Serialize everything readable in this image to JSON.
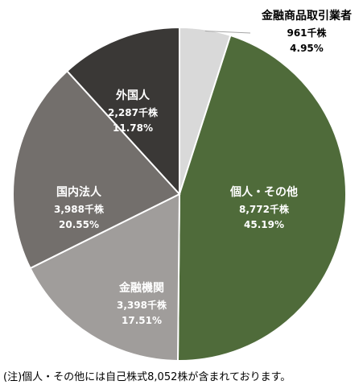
{
  "chart_data": {
    "type": "pie",
    "unit": "千株",
    "slices": [
      {
        "name": "金融商品取引業者",
        "value": 961,
        "value_label": "961千株",
        "percent_label": "4.95%",
        "color": "#d9d9d9",
        "label_dark": true
      },
      {
        "name": "個人・その他",
        "value": 8772,
        "value_label": "8,772千株",
        "percent_label": "45.19%",
        "color": "#4f6b3a",
        "label_dark": false
      },
      {
        "name": "金融機関",
        "value": 3398,
        "value_label": "3,398千株",
        "percent_label": "17.51%",
        "color": "#a09d9b",
        "label_dark": false
      },
      {
        "name": "国内法人",
        "value": 3988,
        "value_label": "3,988千株",
        "percent_label": "20.55%",
        "color": "#736f6c",
        "label_dark": false
      },
      {
        "name": "外国人",
        "value": 2287,
        "value_label": "2,287千株",
        "percent_label": "11.78%",
        "color": "#3a3836",
        "label_dark": false
      }
    ]
  },
  "note": "(注)個人・その他には自己株式8,052株が含まれております。"
}
